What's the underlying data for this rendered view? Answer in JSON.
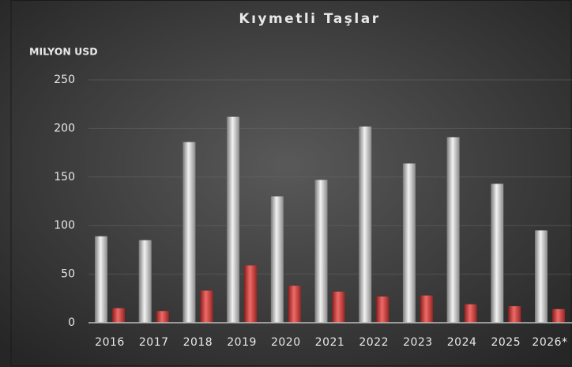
{
  "chart_data": {
    "type": "bar",
    "title": "Kıymetli Taşlar",
    "y_label": "MILYON USD",
    "categories": [
      "2016",
      "2017",
      "2018",
      "2019",
      "2020",
      "2021",
      "2022",
      "2023",
      "2024",
      "2025",
      "2026*"
    ],
    "series": [
      {
        "color": "#c8c8c8",
        "values": [
          89,
          85,
          186,
          212,
          130,
          147,
          202,
          164,
          191,
          143,
          95
        ]
      },
      {
        "color": "#d9413f",
        "values": [
          15,
          12,
          33,
          59,
          38,
          32,
          27,
          28,
          19,
          17,
          14
        ]
      }
    ],
    "ylim": [
      0,
      250
    ],
    "yticks": [
      0,
      50,
      100,
      150,
      200,
      250
    ],
    "grid": true
  }
}
